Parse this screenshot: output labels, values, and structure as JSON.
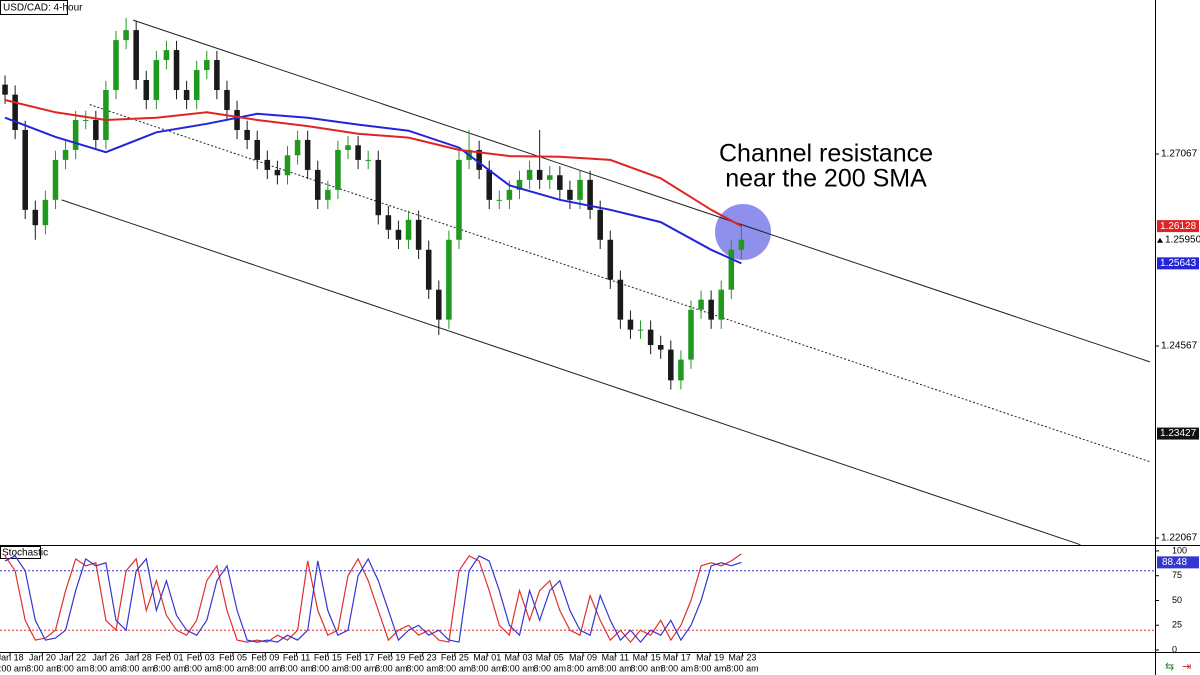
{
  "chart_data": [
    {
      "type": "candlestick",
      "title": "USD/CAD: 4-hour",
      "annotation": [
        "Channel resistance",
        "near the 200 SMA"
      ],
      "xlim": [
        -0.5,
        114
      ],
      "ylim": [
        1.21976,
        1.29072
      ],
      "yticks": [
        1.27067,
        1.24567,
        1.22067
      ],
      "xticks": [
        {
          "value": 0.5,
          "label": "Jan 18"
        },
        {
          "value": 3.7,
          "label": "Jan 20"
        },
        {
          "value": 6.7,
          "label": "Jan 22"
        },
        {
          "value": 10.0,
          "label": "Jan 26"
        },
        {
          "value": 13.2,
          "label": "Jan 28"
        },
        {
          "value": 16.3,
          "label": "Feb 01"
        },
        {
          "value": 19.4,
          "label": "Feb 03"
        },
        {
          "value": 22.6,
          "label": "Feb 05"
        },
        {
          "value": 25.8,
          "label": "Feb 09"
        },
        {
          "value": 28.9,
          "label": "Feb 11"
        },
        {
          "value": 32.0,
          "label": "Feb 15"
        },
        {
          "value": 35.2,
          "label": "Feb 17"
        },
        {
          "value": 38.3,
          "label": "Feb 19"
        },
        {
          "value": 41.4,
          "label": "Feb 23"
        },
        {
          "value": 44.6,
          "label": "Feb 25"
        },
        {
          "value": 47.8,
          "label": "Mar 01"
        },
        {
          "value": 50.9,
          "label": "Mar 03"
        },
        {
          "value": 54.0,
          "label": "Mar 05"
        },
        {
          "value": 57.3,
          "label": "Mar 09"
        },
        {
          "value": 60.5,
          "label": "Mar 11"
        },
        {
          "value": 63.6,
          "label": "Mar 15"
        },
        {
          "value": 66.6,
          "label": "Mar 17"
        },
        {
          "value": 69.9,
          "label": "Mar 19"
        },
        {
          "value": 73.1,
          "label": "Mar 23"
        }
      ],
      "xtick_times": [
        "8:00 am",
        "8:00 am",
        "8:00 am",
        "8:00 am",
        "8:00 am",
        "8:00 am",
        "8:00 am",
        "8:00 am",
        "8:00 am",
        "8:00 am",
        "8:00 am",
        "8:00 am",
        "8:00 am",
        "8:00 am",
        "8:00 am",
        "8:00 am",
        "8:00 am",
        "8:00 am",
        "8:00 am",
        "8:00 am",
        "8:00 am",
        "8:00 am",
        "8:00 am",
        "8:00 am"
      ],
      "up_color": "#1f9a1f",
      "down_color": "#1a1a1a",
      "open": [
        1.2797,
        1.2784,
        1.2738,
        1.2634,
        1.2614,
        1.2647,
        1.2699,
        1.2712,
        1.2751,
        1.2751,
        1.2725,
        1.279,
        1.2855,
        1.2868,
        1.2803,
        1.2777,
        1.2829,
        1.2842,
        1.279,
        1.2777,
        1.2816,
        1.2829,
        1.279,
        1.2764,
        1.2738,
        1.2725,
        1.2699,
        1.2686,
        1.2679,
        1.2705,
        1.2725,
        1.2686,
        1.2647,
        1.266,
        1.2712,
        1.2718,
        1.2699,
        1.2699,
        1.2627,
        1.2608,
        1.2595,
        1.2621,
        1.2582,
        1.253,
        1.2491,
        1.2595,
        1.2699,
        1.2712,
        1.2686,
        1.2647,
        1.2647,
        1.266,
        1.2673,
        1.2686,
        1.2673,
        1.2679,
        1.266,
        1.2647,
        1.2673,
        1.2634,
        1.2595,
        1.2543,
        1.2491,
        1.2478,
        1.2478,
        1.2458,
        1.2452,
        1.2412,
        1.2439,
        1.2504,
        1.2517,
        1.2491,
        1.253,
        1.2582
      ],
      "high": [
        1.2809,
        1.2796,
        1.275,
        1.2646,
        1.2659,
        1.2711,
        1.2724,
        1.2763,
        1.2763,
        1.2763,
        1.2802,
        1.2867,
        1.2884,
        1.288,
        1.2815,
        1.2841,
        1.2854,
        1.2854,
        1.2802,
        1.2828,
        1.2841,
        1.2841,
        1.2802,
        1.2776,
        1.275,
        1.2737,
        1.2711,
        1.2698,
        1.2717,
        1.2737,
        1.2737,
        1.2698,
        1.2672,
        1.2724,
        1.273,
        1.273,
        1.2711,
        1.2711,
        1.2639,
        1.262,
        1.2633,
        1.2633,
        1.2594,
        1.2542,
        1.2607,
        1.2711,
        1.2738,
        1.2724,
        1.2698,
        1.2659,
        1.2672,
        1.2685,
        1.2698,
        1.2738,
        1.2691,
        1.2691,
        1.2672,
        1.2685,
        1.2685,
        1.2646,
        1.2607,
        1.2555,
        1.2503,
        1.249,
        1.249,
        1.247,
        1.2464,
        1.2451,
        1.2516,
        1.2529,
        1.2529,
        1.2542,
        1.2594,
        1.2613
      ],
      "low": [
        1.2772,
        1.2726,
        1.2622,
        1.2595,
        1.2602,
        1.2635,
        1.2687,
        1.27,
        1.2739,
        1.2713,
        1.2713,
        1.2778,
        1.2843,
        1.2791,
        1.2765,
        1.2765,
        1.2817,
        1.2778,
        1.2765,
        1.2765,
        1.2804,
        1.2778,
        1.2752,
        1.2726,
        1.2713,
        1.2687,
        1.2674,
        1.2667,
        1.2667,
        1.2693,
        1.2674,
        1.2635,
        1.2635,
        1.2648,
        1.27,
        1.2687,
        1.2687,
        1.2615,
        1.2596,
        1.2583,
        1.2583,
        1.257,
        1.2518,
        1.2471,
        1.2479,
        1.2583,
        1.2687,
        1.2674,
        1.2635,
        1.2635,
        1.2635,
        1.2648,
        1.2661,
        1.2661,
        1.2661,
        1.2648,
        1.2635,
        1.2635,
        1.2622,
        1.2583,
        1.2531,
        1.2479,
        1.2466,
        1.2466,
        1.2446,
        1.244,
        1.24,
        1.24,
        1.2427,
        1.2492,
        1.2479,
        1.2479,
        1.2518,
        1.257
      ],
      "close": [
        1.2784,
        1.2738,
        1.2634,
        1.2614,
        1.2647,
        1.2699,
        1.2712,
        1.2751,
        1.2751,
        1.2725,
        1.279,
        1.2855,
        1.2868,
        1.2803,
        1.2777,
        1.2829,
        1.2842,
        1.279,
        1.2777,
        1.2816,
        1.2829,
        1.279,
        1.2764,
        1.2738,
        1.2725,
        1.2699,
        1.2686,
        1.2679,
        1.2705,
        1.2725,
        1.2686,
        1.2647,
        1.266,
        1.2712,
        1.2718,
        1.2699,
        1.2699,
        1.2627,
        1.2608,
        1.2595,
        1.2621,
        1.2582,
        1.253,
        1.2491,
        1.2595,
        1.2699,
        1.2712,
        1.2686,
        1.2647,
        1.2647,
        1.266,
        1.2673,
        1.2686,
        1.2673,
        1.2679,
        1.266,
        1.2647,
        1.2673,
        1.2634,
        1.2595,
        1.2543,
        1.2491,
        1.2478,
        1.2478,
        1.2458,
        1.2452,
        1.2412,
        1.2439,
        1.2504,
        1.2517,
        1.2491,
        1.253,
        1.2582,
        1.2595
      ],
      "series": [
        {
          "color": "#2424d8",
          "x": [
            0,
            5,
            10,
            15,
            20,
            25,
            30,
            35,
            40,
            45,
            50,
            55,
            60,
            65,
            70,
            73
          ],
          "values": [
            1.2754,
            1.2729,
            1.2709,
            1.2735,
            1.2746,
            1.2759,
            1.2754,
            1.2745,
            1.2737,
            1.2715,
            1.2666,
            1.2647,
            1.2634,
            1.2618,
            1.2582,
            1.25643
          ]
        },
        {
          "color": "#e02424",
          "x": [
            0,
            5,
            10,
            15,
            20,
            25,
            30,
            35,
            40,
            45,
            50,
            55,
            60,
            65,
            70,
            73
          ],
          "values": [
            1.2777,
            1.2761,
            1.2751,
            1.2754,
            1.2761,
            1.2751,
            1.2743,
            1.2733,
            1.2728,
            1.2712,
            1.2704,
            1.2703,
            1.2699,
            1.2675,
            1.2634,
            1.26128
          ]
        }
      ],
      "channel": [
        {
          "x": [
            12.7,
            113.5
          ],
          "values": [
            1.2881,
            1.2436
          ],
          "dashed": false
        },
        {
          "x": [
            8.4,
            113.5
          ],
          "values": [
            1.2771,
            1.2306
          ],
          "dashed": true
        },
        {
          "x": [
            5.6,
            106.6
          ],
          "values": [
            1.2647,
            1.2198
          ],
          "dashed": false
        }
      ],
      "last_price": {
        "value": 1.2595,
        "label": "1.25950"
      },
      "price_marker": 1.23427
    },
    {
      "type": "line",
      "title": "Stochastic",
      "ylim": [
        -2,
        105
      ],
      "yticks": [
        100,
        75,
        50,
        25,
        0
      ],
      "levels": [
        80,
        20
      ],
      "level_colors": [
        "#3535d0",
        "#e03030"
      ],
      "series": [
        {
          "color": "#e03030",
          "values": [
            95,
            80,
            30,
            10,
            12,
            20,
            60,
            92,
            85,
            88,
            30,
            20,
            80,
            92,
            40,
            70,
            35,
            20,
            15,
            30,
            70,
            85,
            40,
            10,
            8,
            10,
            8,
            15,
            10,
            20,
            90,
            40,
            15,
            20,
            75,
            92,
            70,
            40,
            10,
            20,
            25,
            15,
            20,
            10,
            8,
            80,
            95,
            90,
            60,
            25,
            15,
            60,
            30,
            60,
            70,
            40,
            20,
            15,
            55,
            30,
            10,
            20,
            8,
            20,
            15,
            30,
            10,
            25,
            50,
            85,
            88,
            85,
            90,
            97
          ]
        },
        {
          "color": "#3535d0",
          "values": [
            90,
            95,
            80,
            30,
            10,
            12,
            20,
            60,
            92,
            85,
            88,
            30,
            20,
            80,
            92,
            40,
            70,
            35,
            20,
            15,
            30,
            70,
            85,
            40,
            10,
            8,
            10,
            8,
            15,
            10,
            20,
            90,
            40,
            15,
            20,
            75,
            92,
            70,
            40,
            10,
            20,
            25,
            15,
            20,
            10,
            8,
            80,
            95,
            90,
            60,
            25,
            15,
            60,
            30,
            60,
            70,
            40,
            20,
            15,
            55,
            30,
            10,
            20,
            8,
            20,
            15,
            30,
            10,
            25,
            50,
            85,
            88,
            85,
            88.48
          ]
        }
      ]
    }
  ]
}
